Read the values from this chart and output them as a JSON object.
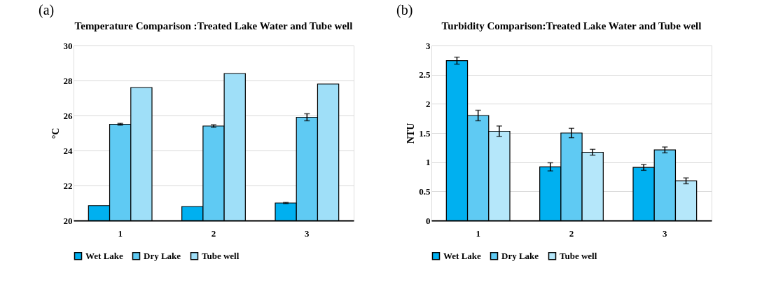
{
  "chart_data": [
    {
      "type": "bar",
      "title": "Temperature Comparison :Treated Lake Water and Tube well",
      "ylabel": "°C",
      "annotations": [
        "(a)"
      ],
      "categories": [
        "1",
        "2",
        "3"
      ],
      "ylim": [
        20,
        30
      ],
      "yticks": [
        20,
        22,
        24,
        26,
        28,
        30
      ],
      "grid": "y",
      "legend": "bottom",
      "series": [
        {
          "name": "Wet Lake",
          "color": "#00b0f0",
          "values": [
            20.85,
            20.8,
            21.0
          ],
          "errors": [
            null,
            null,
            0.03
          ]
        },
        {
          "name": "Dry Lake",
          "color": "#5fcaf3",
          "values": [
            25.5,
            25.4,
            25.9
          ],
          "errors": [
            0.05,
            0.07,
            0.2
          ]
        },
        {
          "name": "Tube well",
          "color": "#9fdff8",
          "values": [
            27.6,
            28.4,
            27.8
          ],
          "errors": [
            null,
            null,
            null
          ]
        }
      ]
    },
    {
      "type": "bar",
      "title": "Turbidity Comparison:Treated Lake Water and Tube well",
      "ylabel": "NTU",
      "annotations": [
        "(b)"
      ],
      "categories": [
        "1",
        "2",
        "3"
      ],
      "ylim": [
        0,
        3
      ],
      "yticks": [
        0,
        0.5,
        1,
        1.5,
        2,
        2.5,
        3
      ],
      "grid": "y",
      "legend": "bottom",
      "series": [
        {
          "name": "Wet Lake",
          "color": "#00b0f0",
          "values": [
            2.74,
            0.92,
            0.91
          ],
          "errors": [
            0.06,
            0.07,
            0.05
          ]
        },
        {
          "name": "Dry Lake",
          "color": "#5fcaf3",
          "values": [
            1.8,
            1.5,
            1.21
          ],
          "errors": [
            0.09,
            0.08,
            0.05
          ]
        },
        {
          "name": "Tube well",
          "color": "#b5e7fa",
          "values": [
            1.53,
            1.17,
            0.68
          ],
          "errors": [
            0.09,
            0.05,
            0.05
          ]
        }
      ]
    }
  ]
}
